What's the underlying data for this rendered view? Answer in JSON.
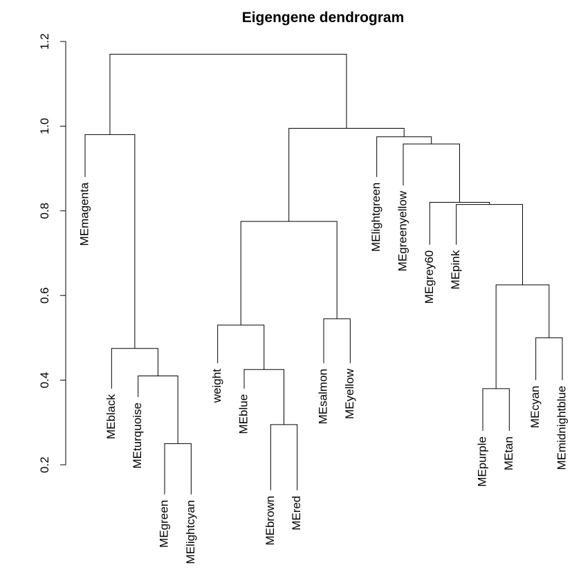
{
  "chart_data": {
    "type": "dendrogram",
    "title": "Eigengene dendrogram",
    "xlabel": "",
    "ylabel": "",
    "ylim": [
      0.2,
      1.2
    ],
    "yticks": [
      "0.2",
      "0.4",
      "0.6",
      "0.8",
      "1.0",
      "1.2"
    ],
    "grid": false,
    "leaves": [
      {
        "label": "MEmagenta",
        "height": 0.88
      },
      {
        "label": "MEblack",
        "height": 0.38
      },
      {
        "label": "MEturquoise",
        "height": 0.36
      },
      {
        "label": "MEgreen",
        "height": 0.13
      },
      {
        "label": "MElightcyan",
        "height": 0.13
      },
      {
        "label": "weight",
        "height": 0.44
      },
      {
        "label": "MEblue",
        "height": 0.38
      },
      {
        "label": "MEbrown",
        "height": 0.14
      },
      {
        "label": "MEred",
        "height": 0.14
      },
      {
        "label": "MEsalmon",
        "height": 0.44
      },
      {
        "label": "MEyellow",
        "height": 0.44
      },
      {
        "label": "MElightgreen",
        "height": 0.88
      },
      {
        "label": "MEgreenyellow",
        "height": 0.86
      },
      {
        "label": "MEgrey60",
        "height": 0.72
      },
      {
        "label": "MEpink",
        "height": 0.72
      },
      {
        "label": "MEpurple",
        "height": 0.28
      },
      {
        "label": "MEtan",
        "height": 0.28
      },
      {
        "label": "MEcyan",
        "height": 0.4
      },
      {
        "label": "MEmidnightblue",
        "height": 0.4
      }
    ],
    "merges": [
      {
        "a": "MEgreen",
        "b": "MElightcyan",
        "height": 0.25
      },
      {
        "a": "MEturquoise",
        "b": 0,
        "height": 0.41
      },
      {
        "a": "MEblack",
        "b": 1,
        "height": 0.475
      },
      {
        "a": "MEmagenta",
        "b": 2,
        "height": 0.98
      },
      {
        "a": "MEbrown",
        "b": "MEred",
        "height": 0.295
      },
      {
        "a": "MEblue",
        "b": 4,
        "height": 0.425
      },
      {
        "a": "weight",
        "b": 5,
        "height": 0.53
      },
      {
        "a": "MEsalmon",
        "b": "MEyellow",
        "height": 0.545
      },
      {
        "a": 6,
        "b": 7,
        "height": 0.775
      },
      {
        "a": "MEpurple",
        "b": "MEtan",
        "height": 0.38
      },
      {
        "a": "MEcyan",
        "b": "MEmidnightblue",
        "height": 0.5
      },
      {
        "a": 9,
        "b": 10,
        "height": 0.625
      },
      {
        "a": "MEpink",
        "b": 11,
        "height": 0.815
      },
      {
        "a": "MEgrey60",
        "b": 12,
        "height": 0.82
      },
      {
        "a": "MEgreenyellow",
        "b": 13,
        "height": 0.958
      },
      {
        "a": "MElightgreen",
        "b": 14,
        "height": 0.975
      },
      {
        "a": 8,
        "b": 15,
        "height": 0.995
      },
      {
        "a": 3,
        "b": 16,
        "height": 1.17
      }
    ]
  }
}
